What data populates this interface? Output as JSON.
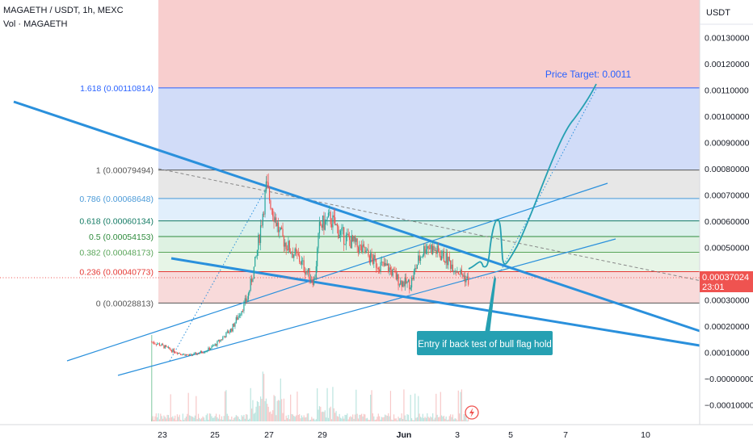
{
  "header": {
    "symbol_line": "MAGAETH / USDT, 1h, MEXC",
    "volume_label": "Vol · MAGAETH"
  },
  "axis": {
    "currency_label": "USDT",
    "last_price_label": "0.00037024",
    "countdown_label": "23:01"
  },
  "colors": {
    "top_zone": "#f7c6c6",
    "target_zone": "#c9d6f7",
    "fib_1_zone": "#e3e3e3",
    "fib_786_zone": "#dcecfb",
    "fib_618_zone": "#d5efe9",
    "fib_5_zone": "#d8f0dd",
    "fib_382_zone": "#e3f3e3",
    "fib_236_zone": "#f7d3d3",
    "trend_blue": "#2a90dc",
    "bull_up": "#26a69a",
    "bear_down": "#ef5350",
    "callout": "#26a0b2",
    "last_price_bg": "#ef5350"
  },
  "annotations": {
    "price_target": "Price Target: 0.0011",
    "entry_note": "Entry if back test of bull flag hold"
  },
  "chart_data": {
    "type": "candlestick",
    "title": "MAGAETH / USDT, 1h, MEXC",
    "y_unit": "USDT",
    "y_ticks": [
      "0.00130000",
      "0.00120000",
      "0.00110000",
      "0.00100000",
      "0.00090000",
      "0.00080000",
      "0.00070000",
      "0.00060000",
      "0.00050000",
      "0.00040000",
      "0.00030000",
      "0.00020000",
      "0.00010000",
      "−0.00000000",
      "−0.00010000"
    ],
    "y_tick_values": [
      0.0013,
      0.0012,
      0.0011,
      0.001,
      0.0009,
      0.0008,
      0.0007,
      0.0006,
      0.0005,
      0.0004,
      0.0003,
      0.0002,
      0.0001,
      0.0,
      -0.0001
    ],
    "x_ticks": [
      "23",
      "25",
      "27",
      "29",
      "Jun",
      "3",
      "5",
      "7",
      "10"
    ],
    "ylim": [
      -0.000155,
      0.00147
    ],
    "last_price": 0.00037024,
    "fib_levels": [
      {
        "label": "1.618 (0.00110814)",
        "value": 0.00110814,
        "color": "#2962ff"
      },
      {
        "label": "1 (0.00079494)",
        "value": 0.00079494,
        "color": "#555555"
      },
      {
        "label": "0.786 (0.00068648)",
        "value": 0.00068648,
        "color": "#4a9ad8"
      },
      {
        "label": "0.618 (0.00060134)",
        "value": 0.00060134,
        "color": "#127a63"
      },
      {
        "label": "0.5 (0.00054153)",
        "value": 0.00054153,
        "color": "#2e8b3c"
      },
      {
        "label": "0.382 (0.00048173)",
        "value": 0.00048173,
        "color": "#5aa55a"
      },
      {
        "label": "0.236 (0.00040773)",
        "value": 0.00040773,
        "color": "#e53935"
      },
      {
        "label": "0 (0.00028813)",
        "value": 0.00028813,
        "color": "#555555"
      }
    ],
    "price_path": [
      [
        22.6,
        0.00014
      ],
      [
        22.9,
        0.00013
      ],
      [
        23.3,
        0.00011
      ],
      [
        23.7,
        9.5e-05
      ],
      [
        24.0,
        8.8e-05
      ],
      [
        24.3,
        9.5e-05
      ],
      [
        24.7,
        0.00011
      ],
      [
        25.0,
        0.00013
      ],
      [
        25.3,
        0.00016
      ],
      [
        25.6,
        0.00019
      ],
      [
        25.9,
        0.00025
      ],
      [
        26.2,
        0.00031
      ],
      [
        26.5,
        0.00045
      ],
      [
        26.9,
        0.00073
      ],
      [
        27.1,
        0.00066
      ],
      [
        27.4,
        0.00055
      ],
      [
        27.8,
        0.00049
      ],
      [
        28.1,
        0.00046
      ],
      [
        28.4,
        0.00041
      ],
      [
        28.7,
        0.00037
      ],
      [
        28.9,
        0.00058
      ],
      [
        29.3,
        0.00061
      ],
      [
        29.7,
        0.00055
      ],
      [
        30.1,
        0.00052
      ],
      [
        30.6,
        0.00048
      ],
      [
        31.0,
        0.00044
      ],
      [
        31.5,
        0.00042
      ],
      [
        31.9,
        0.00037
      ],
      [
        32.3,
        0.00036
      ],
      [
        32.6,
        0.00045
      ],
      [
        32.9,
        0.00051
      ],
      [
        33.2,
        0.00049
      ],
      [
        33.6,
        0.00046
      ],
      [
        34.0,
        0.00042
      ],
      [
        34.3,
        0.00039
      ],
      [
        34.5,
        0.00037
      ]
    ]
  }
}
